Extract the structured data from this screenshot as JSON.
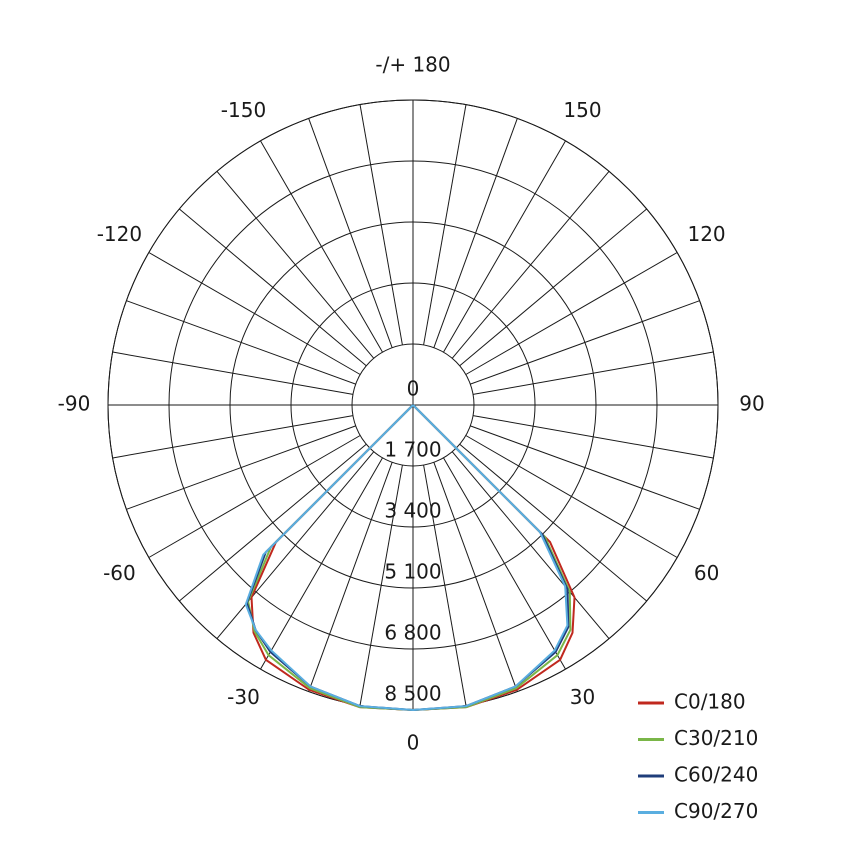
{
  "chart_data": {
    "type": "polar",
    "rlim": [
      0,
      8500
    ],
    "rticks": [
      0,
      {
        "value": 1700,
        "label": "1 700"
      },
      {
        "value": 3400,
        "label": "3 400"
      },
      {
        "value": 5100,
        "label": "5 100"
      },
      {
        "value": 6800,
        "label": "6 800"
      },
      {
        "value": 8500,
        "label": "8 500"
      }
    ],
    "angle_ticks": [
      {
        "value": 180,
        "label": "-/+ 180"
      },
      -150,
      -120,
      -90,
      -60,
      -30,
      0,
      30,
      60,
      90,
      120,
      150
    ],
    "angles": [
      -60,
      -50,
      -45,
      -40,
      -35,
      -30,
      -20,
      -10,
      0,
      10,
      20,
      30,
      35,
      40,
      45,
      50,
      60
    ],
    "series": [
      {
        "name": "C0/180",
        "color": "#c0281e",
        "values": [
          0,
          0,
          5400,
          7000,
          7750,
          8200,
          8450,
          8550,
          8500,
          8550,
          8450,
          8200,
          7750,
          7000,
          5400,
          0,
          0
        ]
      },
      {
        "name": "C30/210",
        "color": "#7ab648",
        "values": [
          0,
          0,
          5600,
          7150,
          7700,
          8050,
          8400,
          8550,
          8500,
          8550,
          8400,
          8050,
          7650,
          6800,
          5200,
          0,
          0
        ]
      },
      {
        "name": "C60/240",
        "color": "#1f3d7a",
        "values": [
          0,
          0,
          5800,
          7200,
          7650,
          7950,
          8350,
          8520,
          8500,
          8520,
          8350,
          7950,
          7550,
          6700,
          5100,
          0,
          0
        ]
      },
      {
        "name": "C90/270",
        "color": "#5aaee0",
        "values": [
          0,
          0,
          5900,
          7250,
          7650,
          7900,
          8350,
          8520,
          8500,
          8520,
          8350,
          7900,
          7500,
          6600,
          5000,
          0,
          0
        ]
      }
    ]
  }
}
